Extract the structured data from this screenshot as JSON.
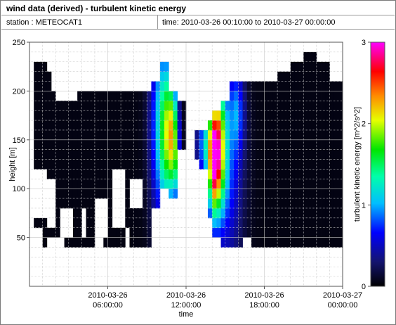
{
  "header": {
    "title": "wind data (derived) - turbulent kinetic energy",
    "station_label": "station : METEOCAT1",
    "time_label": "time: 2010-03-26 00:10:00 to 2010-03-27 00:00:00"
  },
  "chart_data": {
    "type": "heatmap",
    "xlabel": "time",
    "ylabel": "height [m]",
    "colorbar_label": "turbulent kinetic energy [m^2/s^2]",
    "x_ticks": [
      {
        "hour": 6,
        "line1": "2010-03-26",
        "line2": "06:00:00"
      },
      {
        "hour": 12,
        "line1": "2010-03-26",
        "line2": "12:00:00"
      },
      {
        "hour": 18,
        "line1": "2010-03-26",
        "line2": "18:00:00"
      },
      {
        "hour": 24,
        "line1": "2010-03-27",
        "line2": "00:00:00"
      }
    ],
    "xlim_hours": [
      0,
      24
    ],
    "y_ticks": [
      50,
      100,
      150,
      200,
      250
    ],
    "ylim": [
      0,
      250
    ],
    "grid": true,
    "colorbar": {
      "ticks": [
        0,
        1,
        2,
        3
      ],
      "range": [
        0,
        3
      ]
    },
    "height_levels": [
      40,
      50,
      60,
      70,
      80,
      90,
      100,
      110,
      120,
      130,
      140,
      150,
      160,
      170,
      180,
      190,
      200,
      210,
      220,
      230
    ],
    "time_step_minutes": 20,
    "segments": [
      {
        "t0": 0.0,
        "t1": 0.4,
        "hmin": 0,
        "hmax": 0
      },
      {
        "t0": 0.4,
        "t1": 1.3,
        "hmin": 40,
        "hmax": 230
      },
      {
        "t0": 1.3,
        "t1": 1.7,
        "hmin": 50,
        "hmax": 220
      },
      {
        "t0": 1.7,
        "t1": 2.7,
        "hmin": 50,
        "hmax": 200
      },
      {
        "t0": 2.7,
        "t1": 3.7,
        "hmin": 40,
        "hmax": 190
      },
      {
        "t0": 3.7,
        "t1": 6.0,
        "hmin": 40,
        "hmax": 195
      },
      {
        "t0": 6.0,
        "t1": 7.7,
        "hmin": 40,
        "hmax": 195
      },
      {
        "t0": 7.7,
        "t1": 8.7,
        "hmin": 40,
        "hmax": 195
      },
      {
        "t0": 8.7,
        "t1": 9.3,
        "hmin": 40,
        "hmax": 195
      },
      {
        "t0": 9.3,
        "t1": 10.0,
        "hmin": 80,
        "hmax": 205
      },
      {
        "t0": 10.0,
        "t1": 10.7,
        "hmin": 95,
        "hmax": 225
      },
      {
        "t0": 10.7,
        "t1": 11.3,
        "hmin": 90,
        "hmax": 200
      },
      {
        "t0": 11.3,
        "t1": 11.9,
        "hmin": 140,
        "hmax": 190
      },
      {
        "t0": 11.9,
        "t1": 12.6,
        "hmin": 0,
        "hmax": 0
      },
      {
        "t0": 12.6,
        "t1": 13.0,
        "hmin": 130,
        "hmax": 155
      },
      {
        "t0": 13.0,
        "t1": 13.6,
        "hmin": 120,
        "hmax": 155
      },
      {
        "t0": 13.6,
        "t1": 14.0,
        "hmin": 70,
        "hmax": 165
      },
      {
        "t0": 14.0,
        "t1": 14.6,
        "hmin": 50,
        "hmax": 175
      },
      {
        "t0": 14.6,
        "t1": 15.3,
        "hmin": 40,
        "hmax": 185
      },
      {
        "t0": 15.3,
        "t1": 16.0,
        "hmin": 40,
        "hmax": 205
      },
      {
        "t0": 16.0,
        "t1": 17.0,
        "hmin": 40,
        "hmax": 205
      },
      {
        "t0": 17.0,
        "t1": 19.0,
        "hmin": 40,
        "hmax": 210
      },
      {
        "t0": 19.0,
        "t1": 20.0,
        "hmin": 40,
        "hmax": 215
      },
      {
        "t0": 20.0,
        "t1": 21.0,
        "hmin": 40,
        "hmax": 225
      },
      {
        "t0": 21.0,
        "t1": 22.0,
        "hmin": 40,
        "hmax": 235
      },
      {
        "t0": 22.0,
        "t1": 23.0,
        "hmin": 40,
        "hmax": 225
      },
      {
        "t0": 23.0,
        "t1": 24.0,
        "hmin": 40,
        "hmax": 205
      }
    ],
    "gaps": [
      {
        "t0": 0.4,
        "t1": 1.1,
        "h0": 40,
        "h1": 60
      },
      {
        "t0": 0.4,
        "t1": 1.3,
        "h0": 70,
        "h1": 125
      },
      {
        "t0": 1.3,
        "t1": 1.9,
        "h0": 60,
        "h1": 110
      },
      {
        "t0": 2.3,
        "t1": 3.5,
        "h0": 50,
        "h1": 85
      },
      {
        "t0": 3.9,
        "t1": 4.5,
        "h0": 50,
        "h1": 80
      },
      {
        "t0": 5.0,
        "t1": 5.5,
        "h0": 40,
        "h1": 95
      },
      {
        "t0": 5.6,
        "t1": 6.0,
        "h0": 50,
        "h1": 90
      },
      {
        "t0": 6.4,
        "t1": 7.4,
        "h0": 60,
        "h1": 125
      },
      {
        "t0": 7.4,
        "t1": 7.7,
        "h0": 40,
        "h1": 60
      },
      {
        "t0": 7.7,
        "t1": 8.5,
        "h0": 85,
        "h1": 110
      },
      {
        "t0": 2.0,
        "t1": 2.6,
        "h0": 195,
        "h1": 205
      },
      {
        "t0": 16.2,
        "t1": 16.9,
        "h0": 40,
        "h1": 50
      }
    ],
    "jets": [
      {
        "t": 9.9,
        "h": 165,
        "amp": 0.9,
        "st": 0.5,
        "sh": 70
      },
      {
        "t": 10.5,
        "h": 155,
        "amp": 1.2,
        "st": 0.35,
        "sh": 55
      },
      {
        "t": 11.0,
        "h": 160,
        "amp": 1.4,
        "st": 0.3,
        "sh": 35
      },
      {
        "t": 11.15,
        "h": 120,
        "amp": 0.7,
        "st": 0.25,
        "sh": 30
      },
      {
        "t": 13.4,
        "h": 145,
        "amp": 0.9,
        "st": 0.4,
        "sh": 25
      },
      {
        "t": 14.1,
        "h": 130,
        "amp": 2.3,
        "st": 0.3,
        "sh": 40
      },
      {
        "t": 14.6,
        "h": 145,
        "amp": 1.6,
        "st": 0.35,
        "sh": 45
      },
      {
        "t": 15.2,
        "h": 120,
        "amp": 0.7,
        "st": 0.8,
        "sh": 70
      },
      {
        "t": 15.9,
        "h": 180,
        "amp": 0.6,
        "st": 0.4,
        "sh": 30
      }
    ],
    "background_level": 0.05
  }
}
